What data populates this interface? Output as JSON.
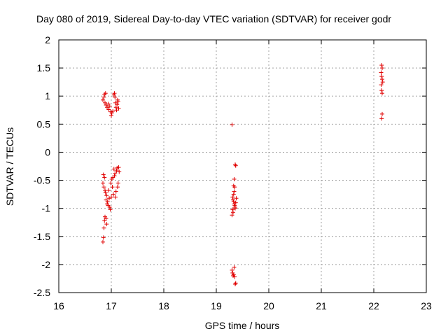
{
  "chart_data": {
    "type": "scatter",
    "title": "Day 080 of 2019, Sidereal Day-to-day VTEC variation (SDTVAR) for receiver godr",
    "xlabel": "GPS time / hours",
    "ylabel": "SDTVAR / TECUs",
    "xlim": [
      16,
      23
    ],
    "ylim": [
      -2.5,
      2
    ],
    "x_ticks": [
      16,
      17,
      18,
      19,
      20,
      21,
      22,
      23
    ],
    "y_ticks": [
      -2.5,
      -2,
      -1.5,
      -1,
      -0.5,
      0,
      0.5,
      1,
      1.5,
      2
    ],
    "x_tick_labels": [
      "16",
      "17",
      "18",
      "19",
      "20",
      "21",
      "22",
      "23"
    ],
    "y_tick_labels": [
      "-2.5",
      "-2",
      "-1.5",
      "-1",
      "-0.5",
      "0",
      "0.5",
      "1",
      "1.5",
      "2"
    ],
    "grid": true,
    "marker": "+",
    "series": [
      {
        "name": "SDTVAR",
        "color": "#e00000",
        "points": [
          [
            16.84,
            0.93
          ],
          [
            16.86,
            0.98
          ],
          [
            16.87,
            1.03
          ],
          [
            16.89,
            1.05
          ],
          [
            16.88,
            0.88
          ],
          [
            16.9,
            0.84
          ],
          [
            16.92,
            0.8
          ],
          [
            16.94,
            0.86
          ],
          [
            16.95,
            0.76
          ],
          [
            16.97,
            0.82
          ],
          [
            16.99,
            0.72
          ],
          [
            17.0,
            0.65
          ],
          [
            17.01,
            0.7
          ],
          [
            17.03,
            0.73
          ],
          [
            17.05,
            1.02
          ],
          [
            17.06,
            1.05
          ],
          [
            17.07,
            0.98
          ],
          [
            17.08,
            0.88
          ],
          [
            17.09,
            0.8
          ],
          [
            17.1,
            0.75
          ],
          [
            17.11,
            0.85
          ],
          [
            17.12,
            0.93
          ],
          [
            17.13,
            0.9
          ],
          [
            17.14,
            0.78
          ],
          [
            16.84,
            -0.55
          ],
          [
            16.85,
            -0.4
          ],
          [
            16.86,
            -0.62
          ],
          [
            16.87,
            -0.45
          ],
          [
            16.88,
            -0.68
          ],
          [
            16.89,
            -0.72
          ],
          [
            16.9,
            -0.85
          ],
          [
            16.91,
            -0.77
          ],
          [
            16.92,
            -0.92
          ],
          [
            16.93,
            -0.88
          ],
          [
            16.94,
            -0.95
          ],
          [
            16.95,
            -0.68
          ],
          [
            16.96,
            -0.82
          ],
          [
            16.97,
            -0.98
          ],
          [
            16.98,
            -1.02
          ],
          [
            16.99,
            -0.55
          ],
          [
            17.0,
            -0.8
          ],
          [
            17.01,
            -0.48
          ],
          [
            17.02,
            -0.62
          ],
          [
            17.03,
            -0.45
          ],
          [
            17.04,
            -0.75
          ],
          [
            17.05,
            -0.3
          ],
          [
            17.06,
            -0.42
          ],
          [
            17.07,
            -0.38
          ],
          [
            17.08,
            -0.8
          ],
          [
            17.09,
            -0.7
          ],
          [
            17.1,
            -0.33
          ],
          [
            17.11,
            -0.28
          ],
          [
            17.12,
            -0.62
          ],
          [
            17.13,
            -0.55
          ],
          [
            17.14,
            -0.27
          ],
          [
            17.15,
            -0.35
          ],
          [
            16.84,
            -1.6
          ],
          [
            16.85,
            -1.52
          ],
          [
            16.86,
            -1.35
          ],
          [
            16.87,
            -1.22
          ],
          [
            16.88,
            -1.15
          ],
          [
            16.9,
            -1.18
          ],
          [
            16.91,
            -1.28
          ],
          [
            19.3,
            0.49
          ],
          [
            19.36,
            -0.22
          ],
          [
            19.37,
            -0.24
          ],
          [
            19.34,
            -0.48
          ],
          [
            19.33,
            -0.6
          ],
          [
            19.35,
            -0.62
          ],
          [
            19.31,
            -0.8
          ],
          [
            19.32,
            -0.85
          ],
          [
            19.33,
            -0.88
          ],
          [
            19.34,
            -0.92
          ],
          [
            19.35,
            -0.95
          ],
          [
            19.36,
            -0.98
          ],
          [
            19.37,
            -0.9
          ],
          [
            19.38,
            -0.82
          ],
          [
            19.31,
            -1.02
          ],
          [
            19.32,
            -1.07
          ],
          [
            19.3,
            -1.12
          ],
          [
            19.33,
            -0.75
          ],
          [
            19.34,
            -0.7
          ],
          [
            19.36,
            -1.0
          ],
          [
            19.3,
            -2.1
          ],
          [
            19.31,
            -2.15
          ],
          [
            19.33,
            -2.18
          ],
          [
            19.34,
            -2.05
          ],
          [
            19.35,
            -2.22
          ],
          [
            19.36,
            -2.35
          ],
          [
            19.37,
            -2.33
          ],
          [
            19.32,
            -2.2
          ],
          [
            22.15,
            1.55
          ],
          [
            22.16,
            1.5
          ],
          [
            22.14,
            1.42
          ],
          [
            22.15,
            1.35
          ],
          [
            22.16,
            1.3
          ],
          [
            22.17,
            1.25
          ],
          [
            22.14,
            1.2
          ],
          [
            22.15,
            1.1
          ],
          [
            22.16,
            1.05
          ],
          [
            22.16,
            0.68
          ],
          [
            22.15,
            0.6
          ]
        ]
      }
    ]
  }
}
